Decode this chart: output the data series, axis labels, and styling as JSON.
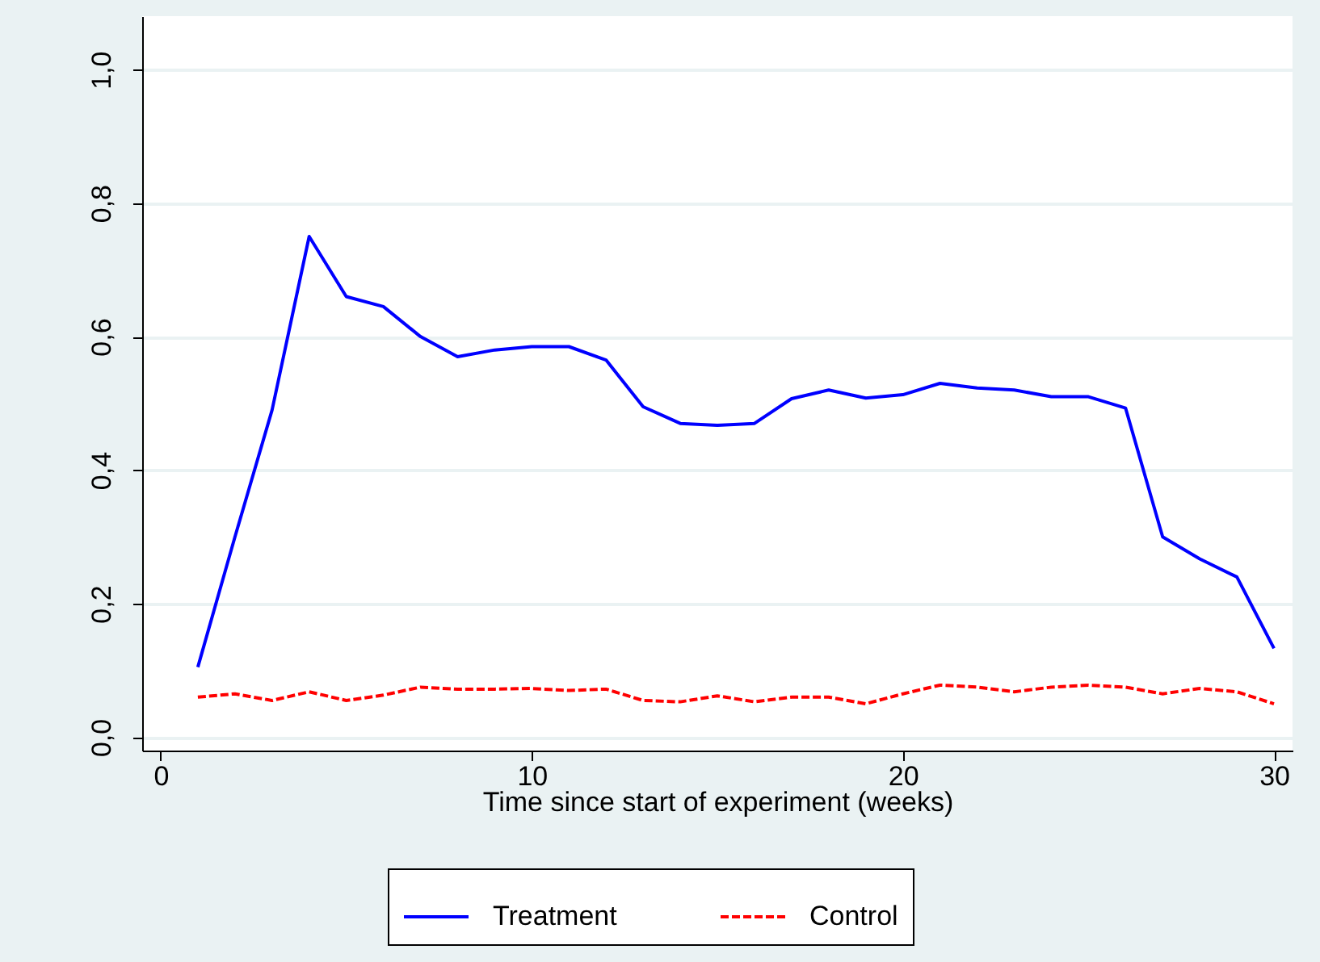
{
  "chart_data": {
    "type": "line",
    "xlabel": "Time since start of experiment (weeks)",
    "x": [
      1,
      2,
      3,
      4,
      5,
      6,
      7,
      8,
      9,
      10,
      11,
      12,
      13,
      14,
      15,
      16,
      17,
      18,
      19,
      20,
      21,
      22,
      23,
      24,
      25,
      26,
      27,
      28,
      29,
      30
    ],
    "series": [
      {
        "name": "Treatment",
        "color": "#0000ff",
        "line_style": "solid",
        "values": [
          0.105,
          0.3,
          0.49,
          0.75,
          0.66,
          0.645,
          0.6,
          0.57,
          0.58,
          0.585,
          0.585,
          0.565,
          0.495,
          0.47,
          0.467,
          0.47,
          0.507,
          0.52,
          0.508,
          0.513,
          0.53,
          0.523,
          0.52,
          0.51,
          0.51,
          0.493,
          0.3,
          0.267,
          0.24,
          0.133
        ]
      },
      {
        "name": "Control",
        "color": "#ff0000",
        "line_style": "dashed",
        "values": [
          0.06,
          0.065,
          0.055,
          0.068,
          0.055,
          0.063,
          0.075,
          0.072,
          0.072,
          0.073,
          0.07,
          0.072,
          0.055,
          0.053,
          0.062,
          0.053,
          0.06,
          0.06,
          0.05,
          0.065,
          0.078,
          0.075,
          0.068,
          0.075,
          0.078,
          0.075,
          0.065,
          0.073,
          0.068,
          0.05
        ]
      }
    ],
    "xlim": [
      -0.5,
      30.5
    ],
    "xticks": [
      0,
      10,
      20,
      30
    ],
    "ylim": [
      -0.02,
      1.08
    ],
    "yticks": [
      {
        "value": 0,
        "label": "0,0"
      },
      {
        "value": 0.2,
        "label": "0,2"
      },
      {
        "value": 0.4,
        "label": "0,4"
      },
      {
        "value": 0.6,
        "label": "0,6"
      },
      {
        "value": 0.8,
        "label": "0,8"
      },
      {
        "value": 1,
        "label": "1,0"
      }
    ],
    "grid": "y",
    "legend": "bottom"
  }
}
